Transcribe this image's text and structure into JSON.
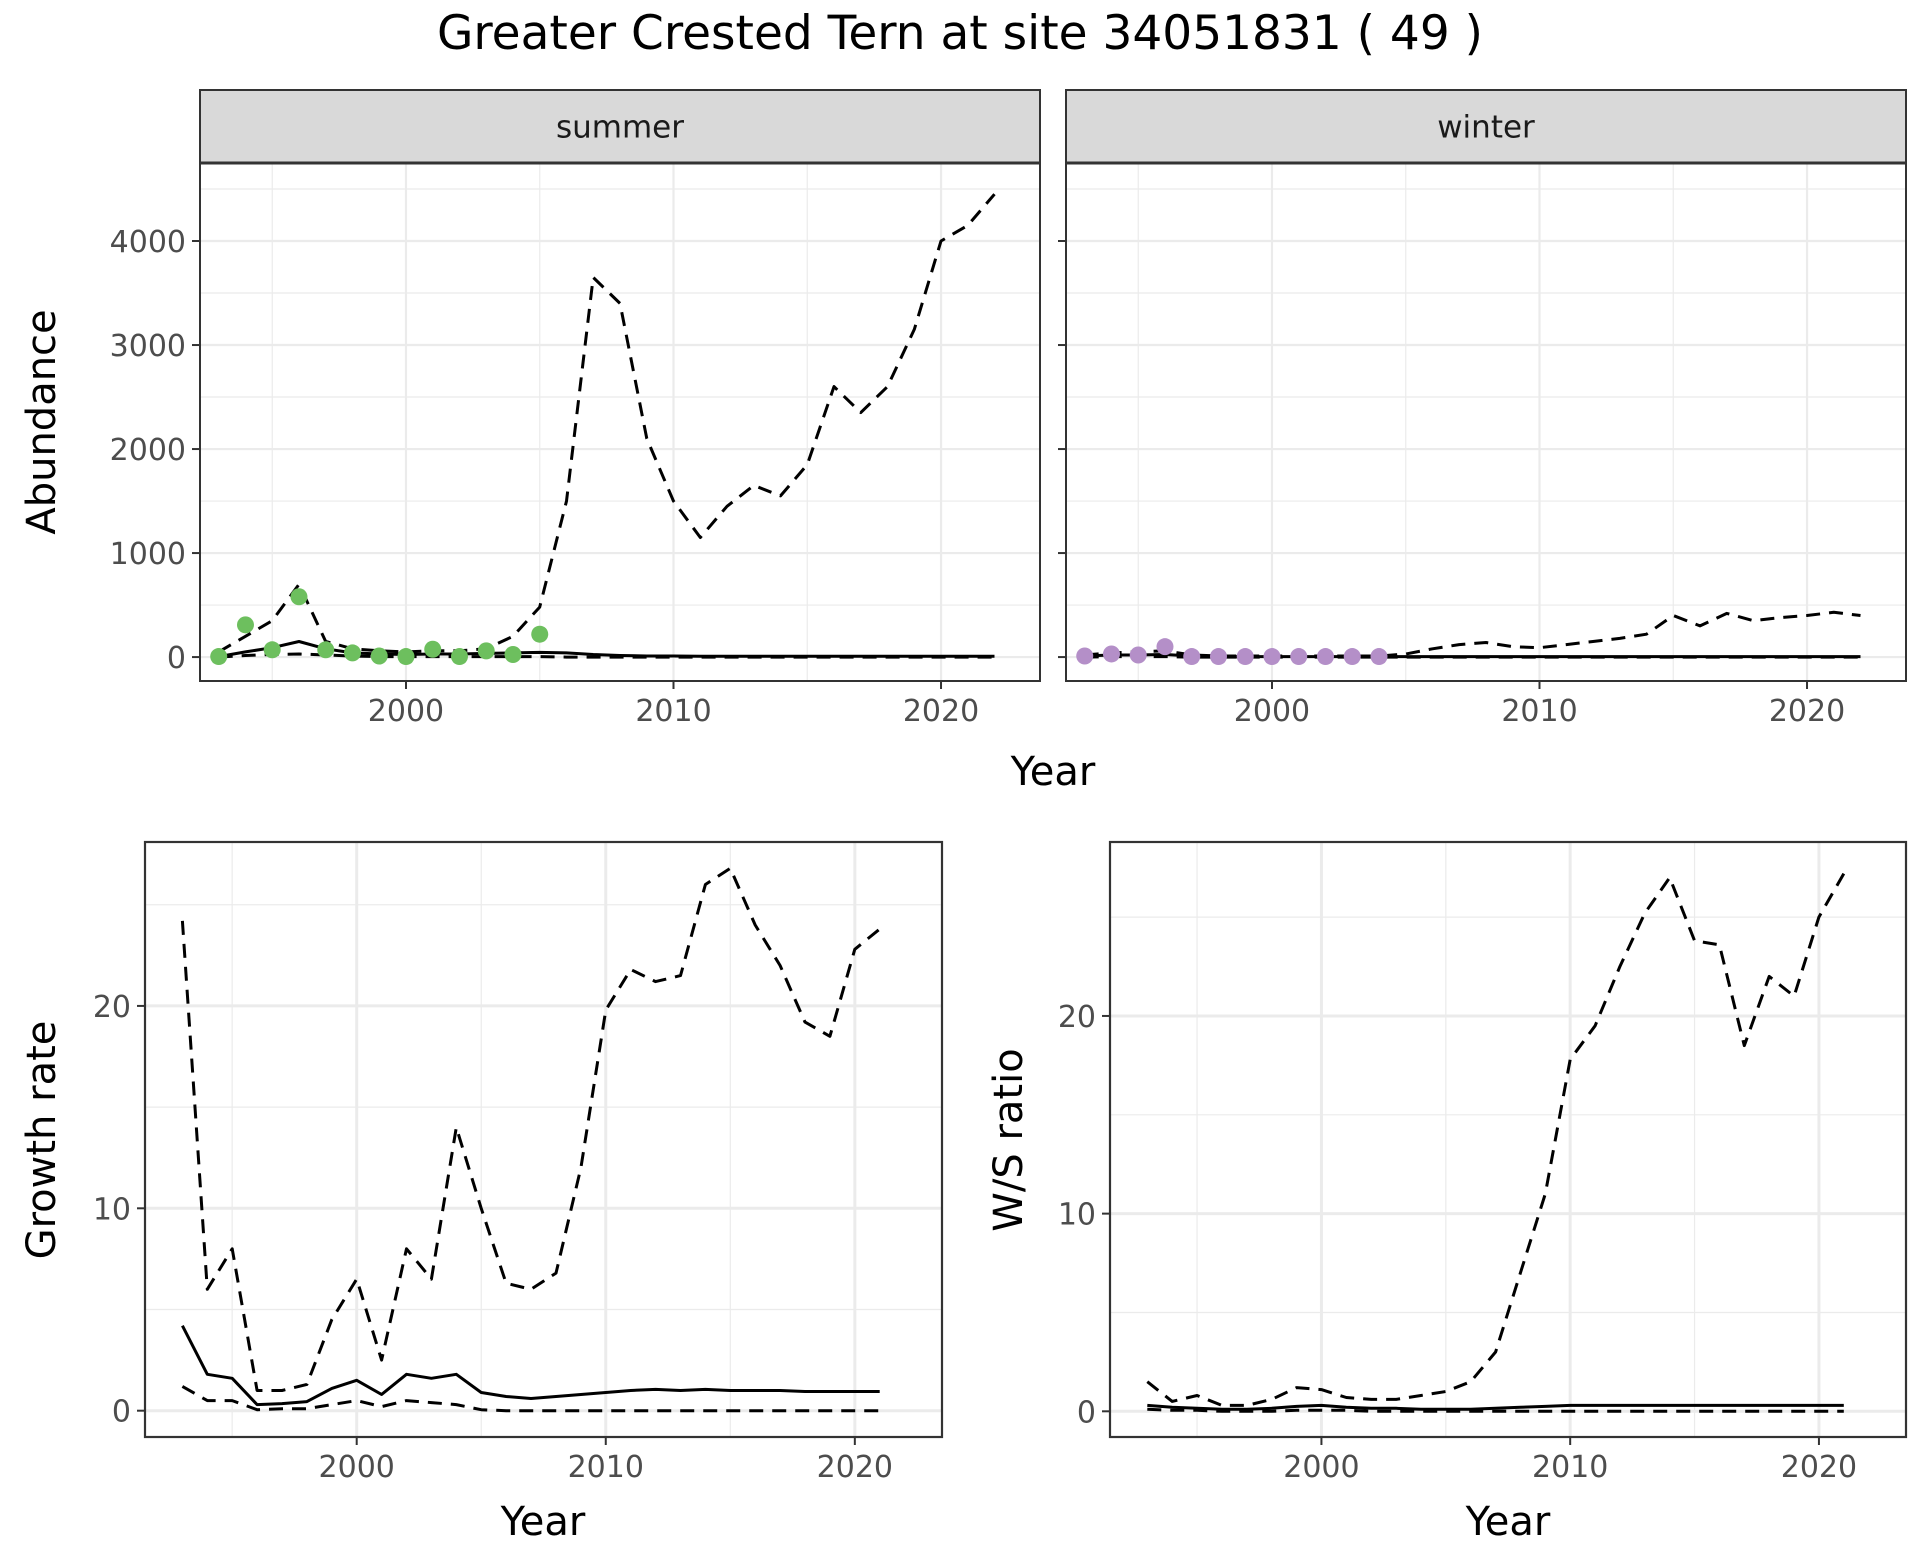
{
  "title": "Greater Crested Tern at site 34051831 ( 49 )",
  "colors": {
    "summer_points": "#6dbf5e",
    "winter_points": "#b48fc8",
    "line": "#000000",
    "strip": "#d9d9d9",
    "grid": "#ebebeb"
  },
  "chart_data": [
    {
      "type": "line",
      "facet": "summer",
      "xlabel": "Year",
      "ylabel": "Abundance",
      "xlim": [
        1992.3,
        2023.7
      ],
      "ylim": [
        -230,
        4750
      ],
      "xticks": [
        2000,
        2010,
        2020
      ],
      "yticks": [
        0,
        1000,
        2000,
        3000,
        4000
      ],
      "series": [
        {
          "style": "solid",
          "x": [
            1993,
            1994,
            1995,
            1996,
            1997,
            1998,
            1999,
            2000,
            2001,
            2002,
            2003,
            2004,
            2005,
            2006,
            2007,
            2008,
            2009,
            2010,
            2011,
            2012,
            2013,
            2014,
            2015,
            2016,
            2017,
            2018,
            2019,
            2020,
            2021,
            2022
          ],
          "y": [
            5,
            50,
            90,
            150,
            80,
            40,
            30,
            25,
            30,
            30,
            35,
            40,
            45,
            40,
            25,
            15,
            10,
            10,
            8,
            8,
            8,
            8,
            8,
            8,
            8,
            8,
            8,
            8,
            8,
            8
          ]
        },
        {
          "style": "dashed",
          "x": [
            1993,
            1994,
            1995,
            1996,
            1997,
            1998,
            1999,
            2000,
            2001,
            2002,
            2003,
            2004,
            2005,
            2006,
            2007,
            2008,
            2009,
            2010,
            2011,
            2012,
            2013,
            2014,
            2015,
            2016,
            2017,
            2018,
            2019,
            2020,
            2021,
            2022
          ],
          "y": [
            50,
            200,
            350,
            700,
            150,
            80,
            60,
            50,
            60,
            60,
            80,
            200,
            480,
            1500,
            3650,
            3400,
            2100,
            1500,
            1150,
            1450,
            1650,
            1550,
            1850,
            2600,
            2350,
            2600,
            3150,
            4000,
            4150,
            4450
          ]
        },
        {
          "style": "dashed",
          "x": [
            1993,
            1994,
            1995,
            1996,
            1997,
            1998,
            1999,
            2000,
            2001,
            2002,
            2003,
            2004,
            2005,
            2006,
            2007,
            2008,
            2009,
            2010,
            2011,
            2012,
            2013,
            2014,
            2015,
            2016,
            2017,
            2018,
            2019,
            2020,
            2021,
            2022
          ],
          "y": [
            0,
            15,
            25,
            30,
            20,
            10,
            5,
            5,
            5,
            5,
            5,
            5,
            5,
            0,
            0,
            0,
            0,
            0,
            0,
            0,
            0,
            0,
            0,
            0,
            0,
            0,
            0,
            0,
            0,
            0
          ]
        }
      ],
      "points": {
        "x": [
          1993,
          1994,
          1995,
          1996,
          1997,
          1998,
          1999,
          2000,
          2001,
          2002,
          2003,
          2004,
          2005
        ],
        "y": [
          5,
          310,
          70,
          580,
          70,
          40,
          10,
          5,
          75,
          5,
          60,
          25,
          220
        ]
      }
    },
    {
      "type": "line",
      "facet": "winter",
      "xlabel": "Year",
      "ylabel": "Abundance",
      "xlim": [
        1992.3,
        2023.7
      ],
      "ylim": [
        -230,
        4750
      ],
      "xticks": [
        2000,
        2010,
        2020
      ],
      "yticks": [
        0,
        1000,
        2000,
        3000,
        4000
      ],
      "series": [
        {
          "style": "solid",
          "x": [
            1993,
            1994,
            1995,
            1996,
            1997,
            1998,
            1999,
            2000,
            2001,
            2002,
            2003,
            2004,
            2005,
            2006,
            2007,
            2008,
            2009,
            2010,
            2011,
            2012,
            2013,
            2014,
            2015,
            2016,
            2017,
            2018,
            2019,
            2020,
            2021,
            2022
          ],
          "y": [
            10,
            20,
            20,
            25,
            10,
            5,
            5,
            5,
            5,
            5,
            5,
            5,
            5,
            5,
            5,
            5,
            5,
            5,
            5,
            5,
            5,
            5,
            5,
            5,
            5,
            5,
            5,
            5,
            5,
            5
          ]
        },
        {
          "style": "dashed",
          "x": [
            1993,
            1994,
            1995,
            1996,
            1997,
            1998,
            1999,
            2000,
            2001,
            2002,
            2003,
            2004,
            2005,
            2006,
            2007,
            2008,
            2009,
            2010,
            2011,
            2012,
            2013,
            2014,
            2015,
            2016,
            2017,
            2018,
            2019,
            2020,
            2021,
            2022
          ],
          "y": [
            20,
            40,
            50,
            60,
            20,
            10,
            10,
            10,
            10,
            10,
            10,
            10,
            30,
            80,
            120,
            140,
            100,
            90,
            120,
            150,
            180,
            220,
            400,
            300,
            420,
            350,
            380,
            400,
            430,
            400
          ]
        },
        {
          "style": "dashed",
          "x": [
            1993,
            1994,
            1995,
            1996,
            1997,
            1998,
            1999,
            2000,
            2001,
            2002,
            2003,
            2004,
            2005,
            2006,
            2007,
            2008,
            2009,
            2010,
            2011,
            2012,
            2013,
            2014,
            2015,
            2016,
            2017,
            2018,
            2019,
            2020,
            2021,
            2022
          ],
          "y": [
            0,
            5,
            5,
            5,
            0,
            0,
            0,
            0,
            0,
            0,
            0,
            0,
            0,
            0,
            0,
            0,
            0,
            0,
            0,
            0,
            0,
            0,
            0,
            0,
            0,
            0,
            0,
            0,
            0,
            0
          ]
        }
      ],
      "points": {
        "x": [
          1993,
          1994,
          1995,
          1996,
          1997,
          1998,
          1999,
          2000,
          2001,
          2002,
          2003,
          2004
        ],
        "y": [
          10,
          30,
          20,
          100,
          5,
          5,
          5,
          5,
          5,
          5,
          5,
          5
        ]
      }
    },
    {
      "type": "line",
      "xlabel": "Year",
      "ylabel": "Growth rate",
      "xlim": [
        1991.5,
        2023.5
      ],
      "ylim": [
        -1.3,
        28.1
      ],
      "xticks": [
        2000,
        2010,
        2020
      ],
      "yticks": [
        0,
        10,
        20
      ],
      "series": [
        {
          "style": "solid",
          "x": [
            1993,
            1994,
            1995,
            1996,
            1997,
            1998,
            1999,
            2000,
            2001,
            2002,
            2003,
            2004,
            2005,
            2006,
            2007,
            2008,
            2009,
            2010,
            2011,
            2012,
            2013,
            2014,
            2015,
            2016,
            2017,
            2018,
            2019,
            2020,
            2021
          ],
          "y": [
            4.2,
            1.8,
            1.6,
            0.3,
            0.35,
            0.45,
            1.1,
            1.5,
            0.8,
            1.8,
            1.6,
            1.8,
            0.9,
            0.7,
            0.6,
            0.7,
            0.8,
            0.9,
            1.0,
            1.05,
            1.0,
            1.05,
            1.0,
            1.0,
            1.0,
            0.95,
            0.95,
            0.95,
            0.95
          ]
        },
        {
          "style": "dashed",
          "x": [
            1993,
            1994,
            1995,
            1996,
            1997,
            1998,
            1999,
            2000,
            2001,
            2002,
            2003,
            2004,
            2005,
            2006,
            2007,
            2008,
            2009,
            2010,
            2011,
            2012,
            2013,
            2014,
            2015,
            2016,
            2017,
            2018,
            2019,
            2020,
            2021
          ],
          "y": [
            24.2,
            6.0,
            8.0,
            1.0,
            1.0,
            1.3,
            4.5,
            6.5,
            2.5,
            8.0,
            6.5,
            14.0,
            10.0,
            6.3,
            6.0,
            6.8,
            12.0,
            19.8,
            21.8,
            21.2,
            21.5,
            26.0,
            26.8,
            24.0,
            22.0,
            19.2,
            18.5,
            22.8,
            23.8
          ]
        },
        {
          "style": "dashed",
          "x": [
            1993,
            1994,
            1995,
            1996,
            1997,
            1998,
            1999,
            2000,
            2001,
            2002,
            2003,
            2004,
            2005,
            2006,
            2007,
            2008,
            2009,
            2010,
            2011,
            2012,
            2013,
            2014,
            2015,
            2016,
            2017,
            2018,
            2019,
            2020,
            2021
          ],
          "y": [
            1.2,
            0.5,
            0.5,
            0.05,
            0.1,
            0.1,
            0.3,
            0.5,
            0.2,
            0.5,
            0.4,
            0.3,
            0.05,
            0.0,
            0.0,
            0.0,
            0.0,
            0.0,
            0.0,
            0.0,
            0.0,
            0.0,
            0.0,
            0.0,
            0.0,
            0.0,
            0.0,
            0.0,
            0.0
          ]
        }
      ]
    },
    {
      "type": "line",
      "xlabel": "Year",
      "ylabel": "W/S ratio",
      "xlim": [
        1991.5,
        2023.5
      ],
      "ylim": [
        -1.3,
        28.8
      ],
      "xticks": [
        2000,
        2010,
        2020
      ],
      "yticks": [
        0,
        10,
        20
      ],
      "series": [
        {
          "style": "solid",
          "x": [
            1993,
            1994,
            1995,
            1996,
            1997,
            1998,
            1999,
            2000,
            2001,
            2002,
            2003,
            2004,
            2005,
            2006,
            2007,
            2008,
            2009,
            2010,
            2011,
            2012,
            2013,
            2014,
            2015,
            2016,
            2017,
            2018,
            2019,
            2020,
            2021
          ],
          "y": [
            0.3,
            0.2,
            0.15,
            0.1,
            0.1,
            0.15,
            0.25,
            0.3,
            0.2,
            0.15,
            0.15,
            0.1,
            0.1,
            0.1,
            0.15,
            0.2,
            0.25,
            0.3,
            0.3,
            0.3,
            0.3,
            0.3,
            0.3,
            0.3,
            0.3,
            0.3,
            0.3,
            0.3,
            0.3
          ]
        },
        {
          "style": "dashed",
          "x": [
            1993,
            1994,
            1995,
            1996,
            1997,
            1998,
            1999,
            2000,
            2001,
            2002,
            2003,
            2004,
            2005,
            2006,
            2007,
            2008,
            2009,
            2010,
            2011,
            2012,
            2013,
            2014,
            2015,
            2016,
            2017,
            2018,
            2019,
            2020,
            2021
          ],
          "y": [
            1.5,
            0.5,
            0.8,
            0.3,
            0.3,
            0.6,
            1.2,
            1.1,
            0.7,
            0.6,
            0.6,
            0.8,
            1.0,
            1.5,
            3.0,
            7.0,
            11.0,
            17.8,
            19.5,
            22.5,
            25.2,
            27.0,
            23.8,
            23.6,
            18.5,
            22.0,
            21.0,
            25.0,
            27.2
          ]
        },
        {
          "style": "dashed",
          "x": [
            1993,
            1994,
            1995,
            1996,
            1997,
            1998,
            1999,
            2000,
            2001,
            2002,
            2003,
            2004,
            2005,
            2006,
            2007,
            2008,
            2009,
            2010,
            2011,
            2012,
            2013,
            2014,
            2015,
            2016,
            2017,
            2018,
            2019,
            2020,
            2021
          ],
          "y": [
            0.1,
            0.05,
            0.05,
            0.0,
            0.0,
            0.0,
            0.05,
            0.05,
            0.05,
            0.0,
            0.0,
            0.0,
            0.0,
            0.0,
            0.0,
            0.0,
            0.0,
            0.0,
            0.0,
            0.0,
            0.0,
            0.0,
            0.0,
            0.0,
            0.0,
            0.0,
            0.0,
            0.0,
            0.0
          ]
        }
      ]
    }
  ]
}
